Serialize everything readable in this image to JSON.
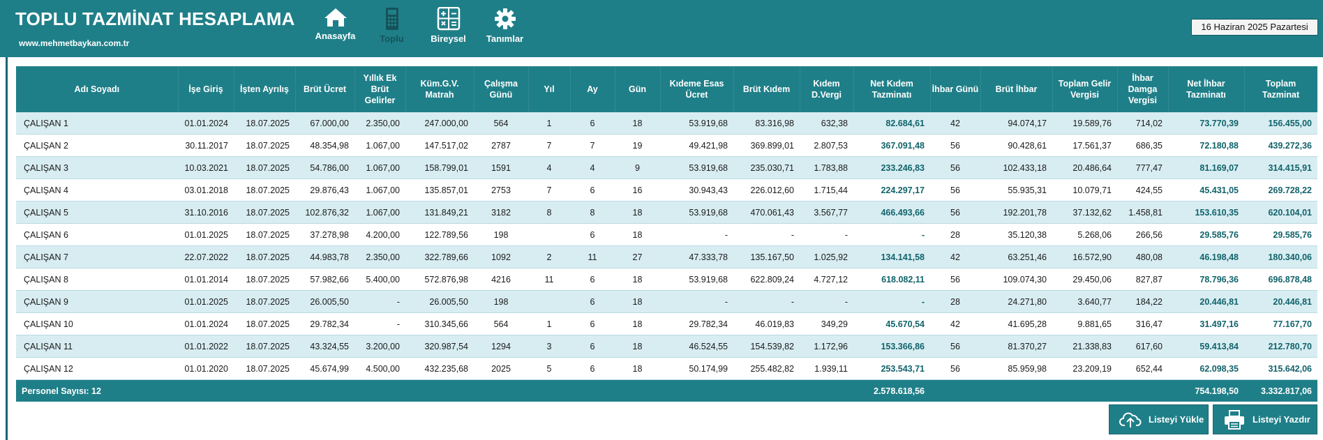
{
  "app": {
    "title": "TOPLU TAZMİNAT HESAPLAMA",
    "site": "www.mehmetbaykan.com.tr",
    "date": "16 Haziran 2025 Pazartesi"
  },
  "nav": [
    {
      "label": "Anasayfa",
      "icon": "home-icon"
    },
    {
      "label": "Toplu",
      "icon": "calculator-icon"
    },
    {
      "label": "Bireysel",
      "icon": "calculator-grid-icon"
    },
    {
      "label": "Tanımlar",
      "icon": "gear-icon"
    }
  ],
  "table": {
    "headers": [
      "Adı Soyadı",
      "İşe Giriş",
      "İşten Ayrılış",
      "Brüt Ücret",
      "Yıllık Ek Brüt Gelirler",
      "Küm.G.V. Matrah",
      "Çalışma Günü",
      "Yıl",
      "Ay",
      "Gün",
      "Kıdeme Esas Ücret",
      "Brüt Kıdem",
      "Kıdem D.Vergi",
      "Net Kıdem Tazminatı",
      "İhbar Günü",
      "Brüt İhbar",
      "Toplam Gelir Vergisi",
      "İhbar Damga Vergisi",
      "Net İhbar Tazminatı",
      "Toplam Tazminat"
    ],
    "rows": [
      [
        "ÇALIŞAN 1",
        "01.01.2024",
        "18.07.2025",
        "67.000,00",
        "2.350,00",
        "247.000,00",
        "564",
        "1",
        "6",
        "18",
        "53.919,68",
        "83.316,98",
        "632,38",
        "82.684,61",
        "42",
        "94.074,17",
        "19.589,76",
        "714,02",
        "73.770,39",
        "156.455,00"
      ],
      [
        "ÇALIŞAN 2",
        "30.11.2017",
        "18.07.2025",
        "48.354,98",
        "1.067,00",
        "147.517,02",
        "2787",
        "7",
        "7",
        "19",
        "49.421,98",
        "369.899,01",
        "2.807,53",
        "367.091,48",
        "56",
        "90.428,61",
        "17.561,37",
        "686,35",
        "72.180,88",
        "439.272,36"
      ],
      [
        "ÇALIŞAN 3",
        "10.03.2021",
        "18.07.2025",
        "54.786,00",
        "1.067,00",
        "158.799,01",
        "1591",
        "4",
        "4",
        "9",
        "53.919,68",
        "235.030,71",
        "1.783,88",
        "233.246,83",
        "56",
        "102.433,18",
        "20.486,64",
        "777,47",
        "81.169,07",
        "314.415,91"
      ],
      [
        "ÇALIŞAN 4",
        "03.01.2018",
        "18.07.2025",
        "29.876,43",
        "1.067,00",
        "135.857,01",
        "2753",
        "7",
        "6",
        "16",
        "30.943,43",
        "226.012,60",
        "1.715,44",
        "224.297,17",
        "56",
        "55.935,31",
        "10.079,71",
        "424,55",
        "45.431,05",
        "269.728,22"
      ],
      [
        "ÇALIŞAN 5",
        "31.10.2016",
        "18.07.2025",
        "102.876,32",
        "1.067,00",
        "131.849,21",
        "3182",
        "8",
        "8",
        "18",
        "53.919,68",
        "470.061,43",
        "3.567,77",
        "466.493,66",
        "56",
        "192.201,78",
        "37.132,62",
        "1.458,81",
        "153.610,35",
        "620.104,01"
      ],
      [
        "ÇALIŞAN 6",
        "01.01.2025",
        "18.07.2025",
        "37.278,98",
        "4.200,00",
        "122.789,56",
        "198",
        "",
        "6",
        "18",
        "-",
        "-",
        "-",
        "-",
        "28",
        "35.120,38",
        "5.268,06",
        "266,56",
        "29.585,76",
        "29.585,76"
      ],
      [
        "ÇALIŞAN 7",
        "22.07.2022",
        "18.07.2025",
        "44.983,78",
        "2.350,00",
        "322.789,66",
        "1092",
        "2",
        "11",
        "27",
        "47.333,78",
        "135.167,50",
        "1.025,92",
        "134.141,58",
        "42",
        "63.251,46",
        "16.572,90",
        "480,08",
        "46.198,48",
        "180.340,06"
      ],
      [
        "ÇALIŞAN 8",
        "01.01.2014",
        "18.07.2025",
        "57.982,66",
        "5.400,00",
        "572.876,98",
        "4216",
        "11",
        "6",
        "18",
        "53.919,68",
        "622.809,24",
        "4.727,12",
        "618.082,11",
        "56",
        "109.074,30",
        "29.450,06",
        "827,87",
        "78.796,36",
        "696.878,48"
      ],
      [
        "ÇALIŞAN 9",
        "01.01.2025",
        "18.07.2025",
        "26.005,50",
        "-",
        "26.005,50",
        "198",
        "",
        "6",
        "18",
        "-",
        "-",
        "-",
        "-",
        "28",
        "24.271,80",
        "3.640,77",
        "184,22",
        "20.446,81",
        "20.446,81"
      ],
      [
        "ÇALIŞAN 10",
        "01.01.2024",
        "18.07.2025",
        "29.782,34",
        "-",
        "310.345,66",
        "564",
        "1",
        "6",
        "18",
        "29.782,34",
        "46.019,83",
        "349,29",
        "45.670,54",
        "42",
        "41.695,28",
        "9.881,65",
        "316,47",
        "31.497,16",
        "77.167,70"
      ],
      [
        "ÇALIŞAN 11",
        "01.01.2022",
        "18.07.2025",
        "43.324,55",
        "3.200,00",
        "320.987,54",
        "1294",
        "3",
        "6",
        "18",
        "46.524,55",
        "154.539,82",
        "1.172,96",
        "153.366,86",
        "56",
        "81.370,27",
        "21.338,83",
        "617,60",
        "59.413,84",
        "212.780,70"
      ],
      [
        "ÇALIŞAN 12",
        "01.01.2020",
        "18.07.2025",
        "45.674,99",
        "4.500,00",
        "432.235,68",
        "2025",
        "5",
        "6",
        "18",
        "50.174,99",
        "255.482,82",
        "1.939,11",
        "253.543,71",
        "56",
        "85.959,98",
        "23.209,19",
        "652,44",
        "62.098,35",
        "315.642,06"
      ]
    ],
    "footer": {
      "label": "Personel Sayısı: 12",
      "net_kidem_total": "2.578.618,56",
      "net_ihbar_total": "754.198,50",
      "toplam_total": "3.332.817,06"
    }
  },
  "buttons": {
    "upload": {
      "label": "Listeyi Yükle",
      "icon": "cloud-upload-icon"
    },
    "print": {
      "label": "Listeyi Yazdır",
      "icon": "printer-icon"
    }
  },
  "colors": {
    "teal": "#1f7f88",
    "row_alt": "#d8edf2",
    "highlight_text": "#11636b"
  }
}
